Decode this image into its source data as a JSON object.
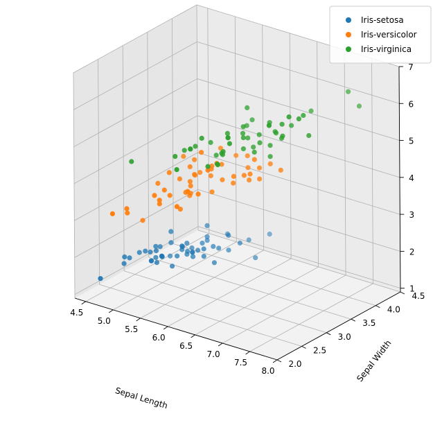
{
  "chart_data": {
    "type": "scatter",
    "projection": "3d",
    "title": "",
    "xlabel": "Sepal Length",
    "ylabel": "Sepal Width",
    "zlabel": "",
    "xlim": [
      4.3,
      8.0
    ],
    "ylim": [
      2.0,
      4.5
    ],
    "zlim": [
      0.9,
      7.0
    ],
    "x_ticks": [
      "4.5",
      "5.0",
      "5.5",
      "6.0",
      "6.5",
      "7.0",
      "7.5",
      "8.0"
    ],
    "y_ticks": [
      "2.0",
      "2.5",
      "3.0",
      "3.5",
      "4.0",
      "4.5"
    ],
    "z_ticks": [
      "1",
      "2",
      "3",
      "4",
      "5",
      "6",
      "7"
    ],
    "grid": true,
    "legend_position": "top-right",
    "series": [
      {
        "name": "Iris-setosa",
        "color": "#1f77b4",
        "points": [
          [
            5.1,
            3.5,
            1.4
          ],
          [
            4.9,
            3.0,
            1.4
          ],
          [
            4.7,
            3.2,
            1.3
          ],
          [
            4.6,
            3.1,
            1.5
          ],
          [
            5.0,
            3.6,
            1.4
          ],
          [
            5.4,
            3.9,
            1.7
          ],
          [
            4.6,
            3.4,
            1.4
          ],
          [
            5.0,
            3.4,
            1.5
          ],
          [
            4.4,
            2.9,
            1.4
          ],
          [
            4.9,
            3.1,
            1.5
          ],
          [
            5.4,
            3.7,
            1.5
          ],
          [
            4.8,
            3.4,
            1.6
          ],
          [
            4.8,
            3.0,
            1.4
          ],
          [
            4.3,
            3.0,
            1.1
          ],
          [
            5.8,
            4.0,
            1.2
          ],
          [
            5.7,
            4.4,
            1.5
          ],
          [
            5.4,
            3.9,
            1.3
          ],
          [
            5.1,
            3.5,
            1.4
          ],
          [
            5.7,
            3.8,
            1.7
          ],
          [
            5.1,
            3.8,
            1.5
          ],
          [
            5.4,
            3.4,
            1.7
          ],
          [
            5.1,
            3.7,
            1.5
          ],
          [
            4.6,
            3.6,
            1.0
          ],
          [
            5.1,
            3.3,
            1.7
          ],
          [
            4.8,
            3.4,
            1.9
          ],
          [
            5.0,
            3.0,
            1.6
          ],
          [
            5.0,
            3.4,
            1.6
          ],
          [
            5.2,
            3.5,
            1.5
          ],
          [
            5.2,
            3.4,
            1.4
          ],
          [
            4.7,
            3.2,
            1.6
          ],
          [
            4.8,
            3.1,
            1.6
          ],
          [
            5.4,
            3.4,
            1.5
          ],
          [
            5.2,
            4.1,
            1.5
          ],
          [
            5.5,
            4.2,
            1.4
          ],
          [
            4.9,
            3.1,
            1.5
          ],
          [
            5.0,
            3.2,
            1.2
          ],
          [
            5.5,
            3.5,
            1.3
          ],
          [
            4.4,
            3.0,
            1.3
          ],
          [
            5.1,
            3.4,
            1.5
          ],
          [
            5.0,
            3.5,
            1.3
          ],
          [
            4.5,
            2.3,
            1.3
          ],
          [
            4.4,
            3.2,
            1.3
          ],
          [
            5.0,
            3.5,
            1.6
          ],
          [
            5.1,
            3.8,
            1.9
          ],
          [
            4.8,
            3.0,
            1.4
          ],
          [
            5.1,
            3.8,
            1.6
          ],
          [
            4.6,
            3.2,
            1.4
          ],
          [
            5.3,
            3.7,
            1.5
          ],
          [
            5.0,
            3.3,
            1.4
          ]
        ]
      },
      {
        "name": "Iris-versicolor",
        "color": "#ff7f0e",
        "points": [
          [
            7.0,
            3.2,
            4.7
          ],
          [
            6.4,
            3.2,
            4.5
          ],
          [
            6.9,
            3.1,
            4.9
          ],
          [
            5.5,
            2.3,
            4.0
          ],
          [
            6.5,
            2.8,
            4.6
          ],
          [
            5.7,
            2.8,
            4.5
          ],
          [
            6.3,
            3.3,
            4.7
          ],
          [
            4.9,
            2.4,
            3.3
          ],
          [
            6.6,
            2.9,
            4.6
          ],
          [
            5.2,
            2.7,
            3.9
          ],
          [
            5.0,
            2.0,
            3.5
          ],
          [
            5.9,
            3.0,
            4.2
          ],
          [
            6.0,
            2.2,
            4.0
          ],
          [
            6.1,
            2.9,
            4.7
          ],
          [
            5.6,
            2.9,
            3.6
          ],
          [
            6.7,
            3.1,
            4.4
          ],
          [
            5.6,
            3.0,
            4.5
          ],
          [
            5.8,
            2.7,
            4.1
          ],
          [
            6.2,
            2.2,
            4.5
          ],
          [
            5.6,
            2.5,
            3.9
          ],
          [
            5.9,
            3.2,
            4.8
          ],
          [
            6.1,
            2.8,
            4.0
          ],
          [
            6.3,
            2.5,
            4.9
          ],
          [
            6.1,
            2.8,
            4.7
          ],
          [
            6.4,
            2.9,
            4.3
          ],
          [
            6.6,
            3.0,
            4.4
          ],
          [
            6.8,
            2.8,
            4.8
          ],
          [
            6.7,
            3.0,
            5.0
          ],
          [
            6.0,
            2.9,
            4.5
          ],
          [
            5.7,
            2.6,
            3.5
          ],
          [
            5.5,
            2.4,
            3.8
          ],
          [
            5.5,
            2.4,
            3.7
          ],
          [
            5.8,
            2.7,
            3.9
          ],
          [
            6.0,
            2.7,
            5.1
          ],
          [
            5.4,
            3.0,
            4.5
          ],
          [
            6.0,
            3.4,
            4.5
          ],
          [
            6.7,
            3.1,
            4.7
          ],
          [
            6.3,
            2.3,
            4.4
          ],
          [
            5.6,
            3.0,
            4.1
          ],
          [
            5.5,
            2.5,
            4.0
          ],
          [
            5.5,
            2.6,
            4.4
          ],
          [
            6.1,
            3.0,
            4.6
          ],
          [
            5.8,
            2.6,
            4.0
          ],
          [
            5.0,
            2.3,
            3.3
          ],
          [
            5.6,
            2.7,
            4.2
          ],
          [
            5.7,
            3.0,
            4.2
          ],
          [
            5.7,
            2.9,
            4.2
          ],
          [
            6.2,
            2.9,
            4.3
          ],
          [
            5.1,
            2.5,
            3.0
          ],
          [
            5.7,
            2.8,
            4.1
          ]
        ]
      },
      {
        "name": "Iris-virginica",
        "color": "#2ca02c",
        "points": [
          [
            6.3,
            3.3,
            6.0
          ],
          [
            5.8,
            2.7,
            5.1
          ],
          [
            7.1,
            3.0,
            5.9
          ],
          [
            6.3,
            2.9,
            5.6
          ],
          [
            6.5,
            3.0,
            5.8
          ],
          [
            7.6,
            3.0,
            6.6
          ],
          [
            4.9,
            2.5,
            4.5
          ],
          [
            7.3,
            2.9,
            6.3
          ],
          [
            6.7,
            2.5,
            5.8
          ],
          [
            7.2,
            3.6,
            6.1
          ],
          [
            6.5,
            3.2,
            5.1
          ],
          [
            6.4,
            2.7,
            5.3
          ],
          [
            6.8,
            3.0,
            5.5
          ],
          [
            5.7,
            2.5,
            5.0
          ],
          [
            5.8,
            2.8,
            5.1
          ],
          [
            6.4,
            3.2,
            5.3
          ],
          [
            6.5,
            3.0,
            5.5
          ],
          [
            7.7,
            3.8,
            6.7
          ],
          [
            7.7,
            2.6,
            6.9
          ],
          [
            6.0,
            2.2,
            5.0
          ],
          [
            6.9,
            3.2,
            5.7
          ],
          [
            5.6,
            2.8,
            4.9
          ],
          [
            7.7,
            2.8,
            6.7
          ],
          [
            6.3,
            2.7,
            4.9
          ],
          [
            6.7,
            3.3,
            5.7
          ],
          [
            7.2,
            3.2,
            6.0
          ],
          [
            6.2,
            2.8,
            4.8
          ],
          [
            6.1,
            3.0,
            4.9
          ],
          [
            6.4,
            2.8,
            5.6
          ],
          [
            7.2,
            3.0,
            5.8
          ],
          [
            7.4,
            2.8,
            6.1
          ],
          [
            7.9,
            3.8,
            6.4
          ],
          [
            6.4,
            2.8,
            5.6
          ],
          [
            6.3,
            2.8,
            5.1
          ],
          [
            6.1,
            2.6,
            5.6
          ],
          [
            7.7,
            3.0,
            6.1
          ],
          [
            6.3,
            3.4,
            5.6
          ],
          [
            6.4,
            3.1,
            5.5
          ],
          [
            6.0,
            3.0,
            4.8
          ],
          [
            6.9,
            3.1,
            5.4
          ],
          [
            6.7,
            3.1,
            5.6
          ],
          [
            6.9,
            3.1,
            5.1
          ],
          [
            5.8,
            2.7,
            5.1
          ],
          [
            6.8,
            3.2,
            5.9
          ],
          [
            6.7,
            3.3,
            5.7
          ],
          [
            6.7,
            3.0,
            5.2
          ],
          [
            6.3,
            2.5,
            5.0
          ],
          [
            6.5,
            3.0,
            5.2
          ],
          [
            6.2,
            3.4,
            5.4
          ],
          [
            5.9,
            3.0,
            5.1
          ]
        ]
      }
    ]
  }
}
